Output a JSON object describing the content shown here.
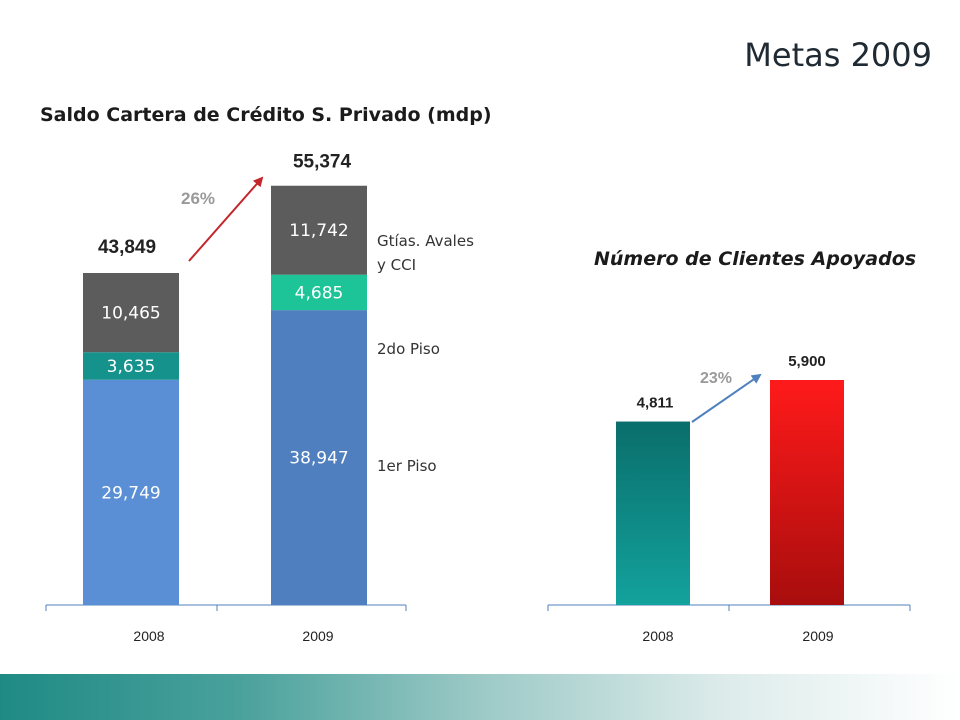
{
  "title": "Metas 2009",
  "chart_data": [
    {
      "type": "bar",
      "stacked": true,
      "title": "Saldo Cartera de Crédito S. Privado (mdp)",
      "categories": [
        "2008",
        "2009"
      ],
      "series": [
        {
          "name": "1er Piso",
          "values": [
            29749,
            38947
          ],
          "labels": [
            "29,749",
            "38,947"
          ],
          "colors": [
            "#5a8fd6",
            "#4f7fbf"
          ]
        },
        {
          "name": "2do Piso",
          "values": [
            3635,
            4685
          ],
          "labels": [
            "3,635",
            "4,685"
          ],
          "colors": [
            "#15928c",
            "#1dc497"
          ]
        },
        {
          "name": "Gtías. Avales y CCI",
          "values": [
            10465,
            11742
          ],
          "labels": [
            "10,465",
            "11,742"
          ],
          "colors": [
            "#5c5c5c",
            "#5c5c5c"
          ]
        }
      ],
      "legend_lines": [
        [
          "1er Piso"
        ],
        [
          "2do Piso"
        ],
        [
          "Gtías. Avales",
          "y CCI"
        ]
      ],
      "totals": [
        "43,849",
        "55,374"
      ],
      "growth": "26%",
      "ylim": [
        0,
        56000
      ]
    },
    {
      "type": "bar",
      "title": "Número de Clientes Apoyados",
      "categories": [
        "2008",
        "2009"
      ],
      "values": [
        4811,
        5900
      ],
      "labels": [
        "4,811",
        "5,900"
      ],
      "growth": "23%",
      "colors": {
        "bar_2008": "#0d8a86",
        "bar_2009": "#e61b1b"
      },
      "ylim": [
        0,
        7560
      ]
    }
  ]
}
